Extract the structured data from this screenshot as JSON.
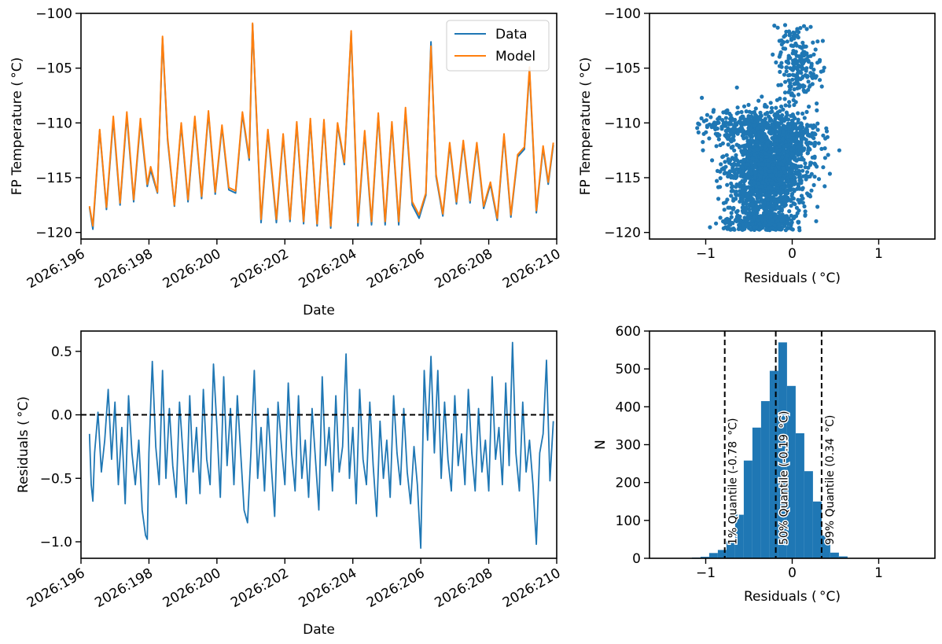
{
  "chart_data": [
    {
      "type": "line",
      "panel": "top-left",
      "xlabel": "Date",
      "ylabel": "FP Temperature ($^\\circ$C)",
      "ylabel_display": "FP Temperature ( °C)",
      "xlim": [
        196.0,
        210.0
      ],
      "ylim": [
        -120.6,
        -100
      ],
      "xticks": [
        196,
        198,
        200,
        202,
        204,
        206,
        208,
        210
      ],
      "xtick_labels": [
        "2026:196",
        "2026:198",
        "2026:200",
        "2026:202",
        "2026:204",
        "2026:206",
        "2026:208",
        "2026:210"
      ],
      "yticks": [
        -100,
        -105,
        -110,
        -115,
        -120
      ],
      "ytick_labels": [
        "−100",
        "−105",
        "−110",
        "−115",
        "−120"
      ],
      "legend_position": "top-right",
      "series": [
        {
          "name": "Data",
          "color": "#1f77b4",
          "x": [
            196.25,
            196.35,
            196.55,
            196.75,
            196.95,
            197.15,
            197.35,
            197.55,
            197.75,
            197.95,
            198.05,
            198.25,
            198.4,
            198.55,
            198.75,
            198.95,
            199.15,
            199.35,
            199.55,
            199.75,
            199.95,
            200.15,
            200.35,
            200.55,
            200.75,
            200.95,
            201.05,
            201.3,
            201.5,
            201.75,
            201.95,
            202.15,
            202.35,
            202.55,
            202.75,
            202.95,
            203.15,
            203.35,
            203.55,
            203.75,
            203.95,
            204.15,
            204.35,
            204.55,
            204.75,
            204.95,
            205.15,
            205.35,
            205.55,
            205.75,
            205.95,
            206.15,
            206.3,
            206.45,
            206.65,
            206.85,
            207.05,
            207.25,
            207.45,
            207.65,
            207.85,
            208.05,
            208.25,
            208.45,
            208.65,
            208.85,
            209.05,
            209.2,
            209.4,
            209.6,
            209.75,
            209.9
          ],
          "y": [
            -117.7,
            -119.7,
            -110.7,
            -117.9,
            -109.7,
            -117.5,
            -109.3,
            -117.2,
            -109.9,
            -115.8,
            -114.3,
            -116.4,
            -102.3,
            -111.6,
            -117.6,
            -110.2,
            -117.2,
            -109.6,
            -116.9,
            -109.1,
            -116.5,
            -110.4,
            -116.1,
            -116.4,
            -109.2,
            -113.4,
            -101.0,
            -119.1,
            -110.8,
            -119.1,
            -111.2,
            -119.0,
            -110.1,
            -119.2,
            -109.8,
            -119.4,
            -109.9,
            -119.6,
            -110.2,
            -113.8,
            -101.8,
            -119.4,
            -110.9,
            -119.3,
            -109.3,
            -119.3,
            -110.1,
            -119.3,
            -108.9,
            -117.5,
            -118.7,
            -116.6,
            -102.6,
            -114.9,
            -118.5,
            -112.0,
            -117.4,
            -111.8,
            -117.3,
            -112.0,
            -117.8,
            -115.6,
            -118.9,
            -111.2,
            -118.6,
            -113.1,
            -112.4,
            -105.2,
            -118.2,
            -112.3,
            -115.6,
            -112.0
          ]
        },
        {
          "name": "Model",
          "color": "#ff7f0e",
          "x": [
            196.25,
            196.35,
            196.55,
            196.75,
            196.95,
            197.15,
            197.35,
            197.55,
            197.75,
            197.95,
            198.05,
            198.25,
            198.4,
            198.55,
            198.75,
            198.95,
            199.15,
            199.35,
            199.55,
            199.75,
            199.95,
            200.15,
            200.35,
            200.55,
            200.75,
            200.95,
            201.05,
            201.3,
            201.5,
            201.75,
            201.95,
            202.15,
            202.35,
            202.55,
            202.75,
            202.95,
            203.15,
            203.35,
            203.55,
            203.75,
            203.95,
            204.15,
            204.35,
            204.55,
            204.75,
            204.95,
            205.15,
            205.35,
            205.55,
            205.75,
            205.95,
            206.15,
            206.3,
            206.45,
            206.65,
            206.85,
            207.05,
            207.25,
            207.45,
            207.65,
            207.85,
            208.05,
            208.25,
            208.45,
            208.65,
            208.85,
            209.05,
            209.2,
            209.4,
            209.6,
            209.75,
            209.9
          ],
          "y": [
            -117.6,
            -119.4,
            -110.6,
            -117.7,
            -109.4,
            -117.3,
            -109.0,
            -117.0,
            -109.6,
            -115.6,
            -114.0,
            -116.3,
            -102.1,
            -111.4,
            -117.5,
            -110.0,
            -117.0,
            -109.4,
            -116.7,
            -108.9,
            -116.3,
            -110.2,
            -115.9,
            -116.2,
            -109.0,
            -113.2,
            -100.9,
            -118.8,
            -110.6,
            -118.8,
            -111.0,
            -118.8,
            -109.9,
            -119.0,
            -109.6,
            -119.2,
            -109.7,
            -119.4,
            -110.0,
            -113.6,
            -101.6,
            -119.1,
            -110.7,
            -119.0,
            -109.1,
            -119.0,
            -109.9,
            -119.0,
            -108.6,
            -117.2,
            -118.4,
            -116.4,
            -103.0,
            -114.7,
            -118.3,
            -111.8,
            -117.2,
            -111.6,
            -117.1,
            -111.8,
            -117.6,
            -115.4,
            -118.7,
            -111.0,
            -118.4,
            -112.9,
            -112.2,
            -104.9,
            -118.0,
            -112.1,
            -115.4,
            -111.8
          ]
        }
      ]
    },
    {
      "type": "scatter",
      "panel": "top-right",
      "xlabel": "Residuals ( °C)",
      "ylabel": "FP Temperature ( °C)",
      "xlim": [
        -1.65,
        1.65
      ],
      "ylim": [
        -120.6,
        -100
      ],
      "xticks": [
        -1,
        0,
        1
      ],
      "xtick_labels": [
        "−1",
        "0",
        "1"
      ],
      "yticks": [
        -100,
        -105,
        -110,
        -115,
        -120
      ],
      "ytick_labels": [
        "−100",
        "−105",
        "−110",
        "−115",
        "−120"
      ],
      "color": "#1f77b4",
      "clusters": [
        {
          "x_mean": -0.3,
          "x_sd": 0.22,
          "y_mean": -114.5,
          "y_sd": 2.2,
          "n": 1500
        },
        {
          "x_mean": -0.35,
          "x_sd": 0.2,
          "y_mean": -119.0,
          "y_sd": 0.45,
          "n": 350
        },
        {
          "x_mean": -0.45,
          "x_sd": 0.3,
          "y_mean": -110.2,
          "y_sd": 0.7,
          "n": 300
        },
        {
          "x_mean": -0.05,
          "x_sd": 0.18,
          "y_mean": -111.5,
          "y_sd": 1.0,
          "n": 200
        },
        {
          "x_mean": 0.05,
          "x_sd": 0.13,
          "y_mean": -104.5,
          "y_sd": 1.8,
          "n": 220
        }
      ]
    },
    {
      "type": "line",
      "panel": "bottom-left",
      "xlabel": "Date",
      "ylabel": "Residuals ( °C)",
      "xlim": [
        196.0,
        210.0
      ],
      "ylim": [
        -1.13,
        0.66
      ],
      "xticks": [
        196,
        198,
        200,
        202,
        204,
        206,
        208,
        210
      ],
      "xtick_labels": [
        "2026:196",
        "2026:198",
        "2026:200",
        "2026:202",
        "2026:204",
        "2026:206",
        "2026:208",
        "2026:210"
      ],
      "yticks": [
        0.5,
        0.0,
        -0.5,
        -1.0
      ],
      "ytick_labels": [
        "0.5",
        "0.0",
        "−0.5",
        "−1.0"
      ],
      "reference_line": {
        "y": 0.0,
        "style": "dashed",
        "color": "#000000"
      },
      "series": [
        {
          "color": "#1f77b4",
          "x": [
            196.25,
            196.3,
            196.35,
            196.4,
            196.5,
            196.6,
            196.7,
            196.8,
            196.9,
            197.0,
            197.1,
            197.2,
            197.3,
            197.4,
            197.5,
            197.6,
            197.7,
            197.8,
            197.9,
            197.95,
            198.0,
            198.1,
            198.2,
            198.3,
            198.4,
            198.5,
            198.6,
            198.7,
            198.8,
            198.9,
            199.0,
            199.1,
            199.2,
            199.3,
            199.4,
            199.5,
            199.6,
            199.7,
            199.8,
            199.9,
            200.0,
            200.1,
            200.2,
            200.3,
            200.4,
            200.5,
            200.6,
            200.7,
            200.8,
            200.9,
            201.0,
            201.1,
            201.2,
            201.3,
            201.4,
            201.5,
            201.6,
            201.7,
            201.8,
            201.9,
            202.0,
            202.1,
            202.2,
            202.3,
            202.4,
            202.5,
            202.6,
            202.7,
            202.8,
            202.9,
            203.0,
            203.1,
            203.2,
            203.3,
            203.4,
            203.5,
            203.6,
            203.7,
            203.8,
            203.9,
            204.0,
            204.1,
            204.2,
            204.3,
            204.4,
            204.5,
            204.6,
            204.7,
            204.8,
            204.9,
            205.0,
            205.1,
            205.2,
            205.3,
            205.4,
            205.5,
            205.6,
            205.7,
            205.8,
            205.9,
            206.0,
            206.1,
            206.2,
            206.3,
            206.4,
            206.5,
            206.6,
            206.7,
            206.8,
            206.9,
            207.0,
            207.1,
            207.2,
            207.3,
            207.4,
            207.5,
            207.6,
            207.7,
            207.8,
            207.9,
            208.0,
            208.1,
            208.2,
            208.3,
            208.4,
            208.5,
            208.6,
            208.7,
            208.8,
            208.9,
            209.0,
            209.1,
            209.2,
            209.3,
            209.4,
            209.5,
            209.6,
            209.7,
            209.8,
            209.9
          ],
          "y": [
            -0.15,
            -0.55,
            -0.68,
            -0.3,
            0.02,
            -0.45,
            -0.2,
            0.2,
            -0.35,
            0.1,
            -0.55,
            -0.1,
            -0.7,
            0.15,
            -0.3,
            -0.55,
            -0.2,
            -0.75,
            -0.95,
            -0.98,
            -0.3,
            0.42,
            -0.25,
            -0.55,
            0.35,
            -0.5,
            0.05,
            -0.4,
            -0.65,
            0.1,
            -0.3,
            -0.7,
            0.15,
            -0.45,
            -0.1,
            -0.62,
            0.2,
            -0.35,
            -0.55,
            0.4,
            -0.1,
            -0.65,
            0.3,
            -0.4,
            0.05,
            -0.55,
            0.15,
            -0.3,
            -0.75,
            -0.85,
            -0.3,
            0.35,
            -0.5,
            -0.1,
            -0.6,
            0.05,
            -0.4,
            -0.8,
            0.1,
            -0.25,
            -0.55,
            0.25,
            -0.3,
            -0.6,
            0.15,
            -0.5,
            -0.2,
            -0.65,
            0.05,
            -0.35,
            -0.75,
            0.3,
            -0.4,
            -0.1,
            -0.6,
            0.15,
            -0.45,
            -0.25,
            0.48,
            -0.5,
            -0.1,
            -0.7,
            0.2,
            -0.35,
            -0.55,
            0.1,
            -0.4,
            -0.8,
            -0.05,
            -0.5,
            -0.2,
            -0.65,
            0.15,
            -0.3,
            -0.55,
            0.05,
            -0.45,
            -0.7,
            -0.25,
            -0.55,
            -1.05,
            0.35,
            -0.2,
            0.46,
            -0.3,
            0.35,
            -0.5,
            0.1,
            -0.35,
            -0.6,
            0.15,
            -0.4,
            -0.15,
            -0.55,
            0.2,
            -0.3,
            -0.6,
            0.05,
            -0.45,
            -0.2,
            -0.6,
            0.3,
            -0.35,
            -0.1,
            -0.55,
            0.25,
            -0.4,
            0.57,
            -0.3,
            -0.6,
            0.1,
            -0.45,
            -0.2,
            -0.55,
            -1.02,
            -0.3,
            -0.15,
            0.43,
            -0.52,
            -0.05
          ]
        }
      ]
    },
    {
      "type": "histogram",
      "panel": "bottom-right",
      "xlabel": "Residuals ( °C)",
      "ylabel": "N",
      "xlim": [
        -1.65,
        1.65
      ],
      "ylim": [
        0,
        600
      ],
      "xticks": [
        -1,
        0,
        1
      ],
      "xtick_labels": [
        "−1",
        "0",
        "1"
      ],
      "yticks": [
        0,
        100,
        200,
        300,
        400,
        500,
        600
      ],
      "ytick_labels": [
        "0",
        "100",
        "200",
        "300",
        "400",
        "500",
        "600"
      ],
      "color": "#1f77b4",
      "bin_edges": [
        -1.16,
        -1.06,
        -0.96,
        -0.86,
        -0.76,
        -0.66,
        -0.56,
        -0.46,
        -0.36,
        -0.26,
        -0.16,
        -0.06,
        0.04,
        0.14,
        0.24,
        0.34,
        0.44,
        0.54,
        0.64
      ],
      "counts": [
        2,
        4,
        14,
        22,
        45,
        115,
        258,
        345,
        415,
        495,
        570,
        455,
        330,
        230,
        150,
        60,
        15,
        5
      ],
      "quantiles": [
        {
          "x": -0.78,
          "label": "1% Quantile (-0.78 $^\\circ$C)",
          "display": "1% Quantile (-0.78  °C)"
        },
        {
          "x": -0.19,
          "label": "50% Quantile (-0.19 $^\\circ$C)",
          "display": "50% Quantile (-0.19  °C)"
        },
        {
          "x": 0.34,
          "label": "99% Quantile (0.34 $^\\circ$C)",
          "display": "99% Quantile (0.34  °C)"
        }
      ]
    }
  ]
}
